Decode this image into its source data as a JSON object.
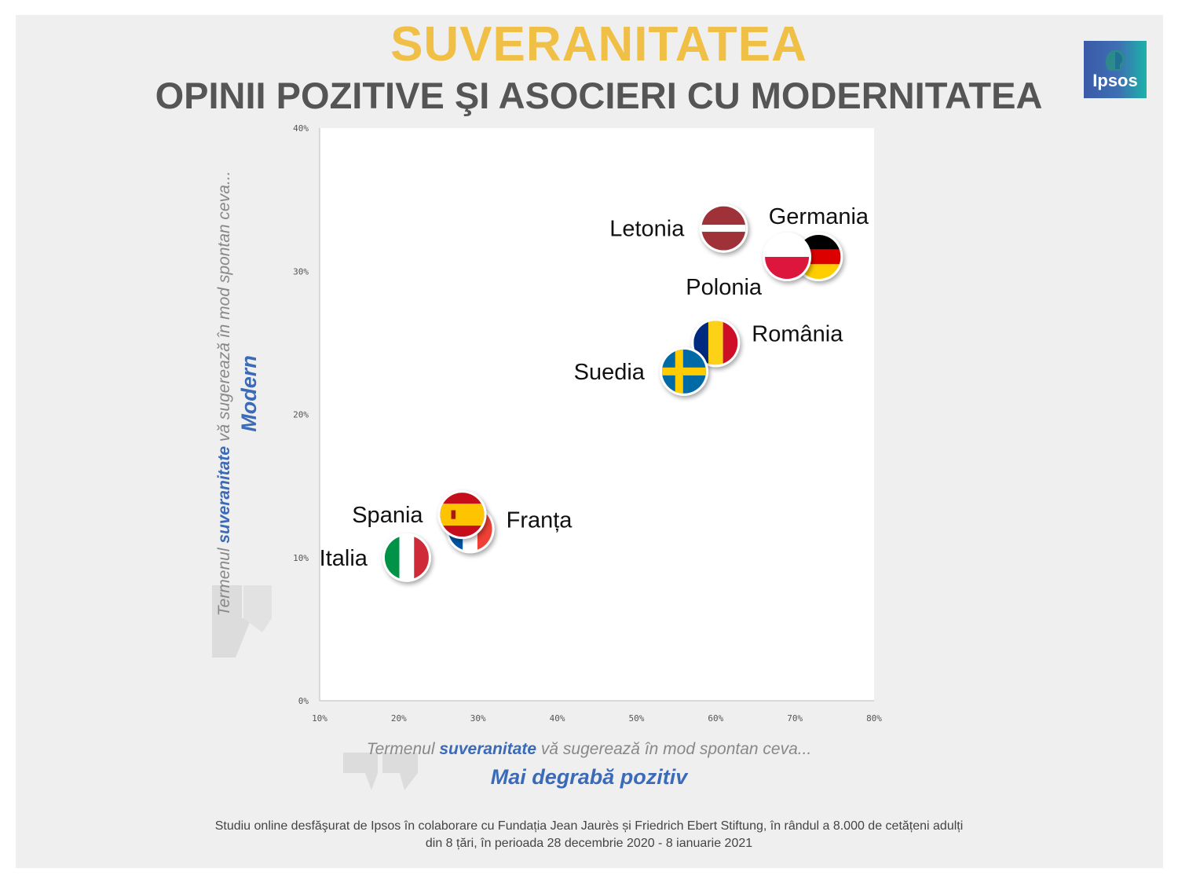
{
  "header": {
    "title": "SUVERANITATEA",
    "subtitle": "OPINII POZITIVE ŞI ASOCIERI CU MODERNITATEA",
    "logo_text": "Ipsos"
  },
  "axes": {
    "y_prefix": "Termenul ",
    "y_term": "suveranitate",
    "y_suffix": " vă sugerează în mod spontan ceva...",
    "y_main": "Modern",
    "x_prefix": "Termenul ",
    "x_term": "suveranitate",
    "x_suffix": " vă sugerează în mod spontan ceva...",
    "x_main": "Mai degrabă pozitiv"
  },
  "footnote": {
    "line1": "Studiu online desfăşurat de Ipsos în colaborare cu Fundația Jean Jaurès și Friedrich Ebert Stiftung, în rândul a 8.000 de cetățeni adulți",
    "line2": "din 8 țări, în perioada 28 decembrie 2020 - 8 ianuarie 2021"
  },
  "chart_data": {
    "type": "scatter",
    "title": "SUVERANITATEA",
    "subtitle": "OPINII POZITIVE ŞI ASOCIERI CU MODERNITATEA",
    "xlabel": "Termenul suveranitate vă sugerează în mod spontan ceva... Mai degrabă pozitiv",
    "ylabel": "Termenul suveranitate vă sugerează în mod spontan ceva... Modern",
    "xlim": [
      10,
      80
    ],
    "ylim": [
      0,
      40
    ],
    "x_ticks": [
      "10%",
      "20%",
      "30%",
      "40%",
      "50%",
      "60%",
      "70%",
      "80%"
    ],
    "y_ticks": [
      "0%",
      "10%",
      "20%",
      "30%",
      "40%"
    ],
    "grid": false,
    "points": [
      {
        "label": "Germania",
        "x": 73,
        "y": 31,
        "flag": "germany",
        "label_pos": "above"
      },
      {
        "label": "Polonia",
        "x": 69,
        "y": 31,
        "flag": "poland",
        "label_pos": "below-left"
      },
      {
        "label": "Letonia",
        "x": 61,
        "y": 33,
        "flag": "latvia",
        "label_pos": "left"
      },
      {
        "label": "România",
        "x": 60,
        "y": 25,
        "flag": "romania",
        "label_pos": "right"
      },
      {
        "label": "Suedia",
        "x": 56,
        "y": 23,
        "flag": "sweden",
        "label_pos": "left"
      },
      {
        "label": "Franța",
        "x": 29,
        "y": 12,
        "flag": "france",
        "label_pos": "right"
      },
      {
        "label": "Spania",
        "x": 28,
        "y": 13,
        "flag": "spain",
        "label_pos": "left"
      },
      {
        "label": "Italia",
        "x": 21,
        "y": 10,
        "flag": "italy",
        "label_pos": "left"
      }
    ]
  }
}
